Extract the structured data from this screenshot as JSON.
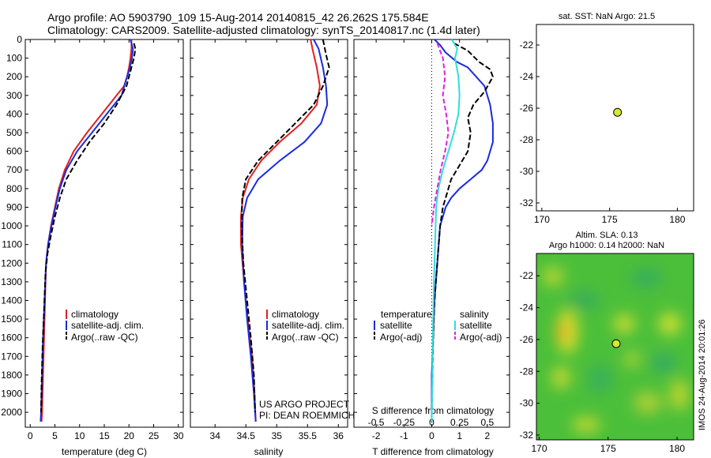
{
  "header": {
    "line1": "Argo profile: AO 5903790_109 15-Aug-2014 20140815_42 26.262S 175.584E",
    "line2": "Climatology: CARS2009. Satellite-adjusted climatology: synTS_20140817.nc (1.4d later)"
  },
  "colors": {
    "climatology": "#e02020",
    "satellite": "#1a2be0",
    "argo": "#000000",
    "sat_salinity": "#33dddd",
    "argo_salinity_diff": "#e020e0",
    "marker": "#d8e830",
    "map_fill": "#ffffff"
  },
  "chart_data": [
    {
      "id": "temp",
      "type": "line",
      "xlabel": "temperature (deg C)",
      "xlim": [
        -1,
        31
      ],
      "ylim": [
        0,
        2080
      ],
      "xticks": [
        0,
        5,
        10,
        15,
        20,
        25,
        30
      ],
      "yticks": [
        0,
        100,
        200,
        300,
        400,
        500,
        600,
        700,
        800,
        900,
        1000,
        1100,
        1200,
        1300,
        1400,
        1500,
        1600,
        1700,
        1800,
        1900,
        2000
      ],
      "legend": [
        "climatology",
        "satellite-adj. clim.",
        "Argo(..raw -QC)"
      ],
      "series": [
        {
          "name": "climatology",
          "style": "climatology",
          "x": [
            20.5,
            20.5,
            20.3,
            20,
            19.6,
            19,
            17.5,
            14.5,
            11.5,
            8.8,
            7,
            5.8,
            5,
            4.2,
            3.6,
            3.2,
            3,
            2.8,
            2.6,
            2.4,
            2.3
          ],
          "y": [
            0,
            50,
            100,
            150,
            200,
            250,
            300,
            400,
            500,
            600,
            700,
            800,
            900,
            1000,
            1100,
            1200,
            1400,
            1600,
            1800,
            2000,
            2050
          ]
        },
        {
          "name": "satellite",
          "style": "satellite",
          "x": [
            20.3,
            20.8,
            20.6,
            20.2,
            19.6,
            18.5,
            15.5,
            12.5,
            9.5,
            7.3,
            6,
            5.1,
            4.3,
            3.6,
            3.2,
            2.9,
            2.6,
            2.4,
            2.2,
            2.1
          ],
          "y": [
            0,
            50,
            100,
            150,
            200,
            300,
            400,
            500,
            600,
            700,
            800,
            900,
            1000,
            1100,
            1200,
            1400,
            1600,
            1800,
            2000,
            2050
          ]
        },
        {
          "name": "argo",
          "style": "argo",
          "x": [
            21,
            21.3,
            21,
            20.5,
            19.5,
            17.5,
            15,
            12,
            9.5,
            7.3,
            6,
            5,
            4.2,
            3.5,
            3.1,
            2.8,
            2.5,
            2.3,
            2.2
          ],
          "y": [
            20,
            50,
            100,
            150,
            250,
            350,
            450,
            550,
            650,
            750,
            850,
            950,
            1050,
            1150,
            1250,
            1450,
            1650,
            1850,
            2000
          ]
        }
      ]
    },
    {
      "id": "sal",
      "type": "line",
      "xlabel": "salinity",
      "xlim": [
        33.6,
        36.15
      ],
      "ylim": [
        0,
        2080
      ],
      "xticks": [
        34,
        34.5,
        35,
        35.5,
        36
      ],
      "legend": [
        "climatology",
        "satellite-adj. clim.",
        "Argo(..raw -QC)"
      ],
      "annotation": [
        "US ARGO PROJECT",
        "PI: DEAN ROEMMICH"
      ],
      "series": [
        {
          "name": "climatology",
          "style": "climatology",
          "x": [
            35.55,
            35.58,
            35.65,
            35.7,
            35.65,
            35.4,
            35.05,
            34.75,
            34.55,
            34.45,
            34.42,
            34.42,
            34.47,
            34.53,
            34.6,
            34.64,
            34.66
          ],
          "y": [
            0,
            50,
            150,
            250,
            350,
            450,
            550,
            650,
            750,
            850,
            950,
            1100,
            1300,
            1500,
            1700,
            1900,
            2050
          ]
        },
        {
          "name": "satellite",
          "style": "satellite",
          "x": [
            35.6,
            35.68,
            35.75,
            35.8,
            35.82,
            35.72,
            35.45,
            35.05,
            34.7,
            34.52,
            34.45,
            34.44,
            34.47,
            34.52,
            34.58,
            34.63,
            34.66
          ],
          "y": [
            0,
            50,
            150,
            250,
            350,
            450,
            550,
            650,
            750,
            850,
            950,
            1100,
            1300,
            1500,
            1700,
            1900,
            2050
          ]
        },
        {
          "name": "argo",
          "style": "argo",
          "x": [
            35.75,
            35.8,
            35.85,
            35.75,
            35.6,
            35.3,
            35.0,
            34.7,
            34.5,
            34.44,
            34.43,
            34.46,
            34.52,
            34.58,
            34.63,
            34.65
          ],
          "y": [
            0,
            80,
            150,
            250,
            350,
            450,
            550,
            650,
            750,
            850,
            1000,
            1200,
            1400,
            1600,
            1800,
            2000
          ]
        }
      ]
    },
    {
      "id": "diff",
      "type": "line",
      "xlabel": "T difference from climatology",
      "xlim": [
        -2.8,
        2.8
      ],
      "ylim": [
        0,
        2080
      ],
      "xticks": [
        -2,
        -1,
        0,
        1,
        2
      ],
      "sxlabel": "S difference from climatology",
      "sxlim": [
        -0.7,
        0.7
      ],
      "sxticks": [
        -0.5,
        -0.25,
        0,
        0.25,
        0.5
      ],
      "legend_titles": [
        "temperature",
        "salinity"
      ],
      "legend": [
        "satellite",
        "Argo(-adj)",
        "satellite",
        "Argo(-adj)"
      ],
      "series": [
        {
          "name": "T satellite",
          "style": "satellite",
          "axis": "T",
          "x": [
            0.1,
            0.3,
            0.5,
            0.9,
            1.3,
            1.6,
            1.9,
            2.1,
            2.2,
            2.2,
            2.0,
            1.8,
            1.4,
            1.0,
            0.7,
            0.5,
            0.3,
            0.2,
            0.1,
            0.05,
            0,
            0
          ],
          "y": [
            0,
            30,
            70,
            120,
            150,
            200,
            250,
            350,
            450,
            550,
            650,
            700,
            750,
            800,
            850,
            900,
            1000,
            1200,
            1400,
            1600,
            1800,
            2050
          ]
        },
        {
          "name": "T argo",
          "style": "argo",
          "axis": "T",
          "x": [
            0.8,
            1.3,
            1.7,
            2.1,
            2.2,
            1.9,
            1.5,
            1.3,
            1.4,
            1.3,
            1.1,
            0.9,
            0.7,
            0.6,
            0.4,
            0.3,
            0.2,
            0.1,
            0.05,
            0
          ],
          "y": [
            20,
            60,
            120,
            160,
            200,
            280,
            350,
            420,
            500,
            600,
            650,
            700,
            750,
            800,
            900,
            1000,
            1200,
            1400,
            1600,
            2000
          ]
        },
        {
          "name": "S satellite",
          "style": "sat_salinity",
          "axis": "S",
          "x": [
            0.18,
            0.23,
            0.21,
            0.24,
            0.25,
            0.24,
            0.2,
            0.15,
            0.1,
            0.06,
            0.04,
            0.03,
            0.02,
            0.01,
            0
          ],
          "y": [
            0,
            50,
            100,
            200,
            300,
            400,
            500,
            600,
            700,
            800,
            900,
            1100,
            1300,
            1600,
            2050
          ]
        },
        {
          "name": "S argo",
          "style": "argo_salinity_diff",
          "axis": "S",
          "x": [
            0.05,
            0.1,
            0.12,
            0.1,
            0.13,
            0.15,
            0.12,
            0.08,
            0.05,
            0.02,
            0
          ],
          "y": [
            20,
            100,
            200,
            300,
            400,
            500,
            600,
            700,
            800,
            900,
            1000
          ]
        }
      ]
    },
    {
      "id": "sst_map",
      "type": "scatter",
      "title": "sat. SST: NaN Argo: 21.5",
      "xlim": [
        169.6,
        181.2
      ],
      "ylim": [
        -32.5,
        -20.7
      ],
      "xticks": [
        170,
        175,
        180
      ],
      "yticks": [
        -22,
        -24,
        -26,
        -28,
        -30,
        -32
      ],
      "points": [
        {
          "x": 175.584,
          "y": -26.262
        }
      ]
    },
    {
      "id": "sla_map",
      "type": "heatmap",
      "title": [
        "Altim. SLA: 0.13",
        "Argo h1000: 0.14 h2000: NaN"
      ],
      "xlim": [
        169.8,
        181.2
      ],
      "ylim": [
        -32.3,
        -20.6
      ],
      "xticks": [
        170,
        175,
        180
      ],
      "yticks": [
        -22,
        -24,
        -26,
        -28,
        -30,
        -32
      ],
      "side_label": "IMOS 24-Aug-2014 20:01:26",
      "points": [
        {
          "x": 175.584,
          "y": -26.262
        }
      ]
    }
  ]
}
